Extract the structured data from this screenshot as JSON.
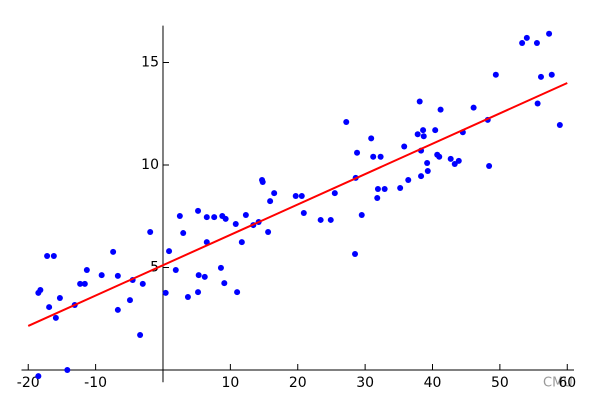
{
  "chart_data": {
    "type": "scatter",
    "xlim": [
      -21,
      61
    ],
    "ylim": [
      -0.6,
      16.8
    ],
    "xticks": [
      -20,
      -10,
      10,
      20,
      30,
      40,
      50,
      60
    ],
    "yticks": [
      5,
      10,
      15
    ],
    "series": [
      {
        "color": "#0000ff",
        "x": [
          -18.5,
          -18.2,
          -17.2,
          -16.2,
          -16.9,
          -15.9,
          -15.3,
          -18.5,
          -14.2,
          -13.1,
          -12.3,
          -11.6,
          -11.3,
          -9.1,
          -7.4,
          -6.7,
          -6.7,
          -4.9,
          -4.5,
          -3.4,
          -3.0,
          -1.9,
          0.4,
          0.9,
          1.9,
          2.5,
          3.0,
          3.7,
          5.2,
          5.3,
          5.2,
          6.2,
          6.5,
          6.5,
          7.6,
          8.8,
          8.6,
          9.3,
          9.1,
          10.8,
          11.0,
          11.7,
          12.3,
          13.4,
          14.2,
          14.7,
          14.8,
          15.6,
          15.9,
          16.5,
          19.7,
          20.6,
          20.9,
          23.4,
          24.9,
          25.5,
          27.2,
          28.5,
          28.6,
          28.8,
          29.5,
          30.9,
          31.2,
          31.8,
          31.9,
          32.3,
          32.9,
          35.2,
          35.8,
          36.4,
          37.8,
          38.1,
          38.3,
          38.3,
          38.6,
          38.7,
          39.2,
          39.3,
          40.4,
          40.7,
          41.0,
          41.2,
          42.7,
          43.3,
          43.9,
          44.5,
          46.1,
          48.2,
          48.4,
          49.4,
          53.3,
          54.0,
          55.5,
          55.6,
          56.1,
          57.3,
          57.7,
          58.9
        ],
        "values": [
          3.76,
          3.9,
          5.56,
          5.56,
          3.07,
          2.54,
          3.51,
          -0.3,
          0,
          3.17,
          4.2,
          4.2,
          4.88,
          4.63,
          5.76,
          4.59,
          2.93,
          3.41,
          4.39,
          1.71,
          4.2,
          6.73,
          3.76,
          5.8,
          4.88,
          7.51,
          6.68,
          3.56,
          7.76,
          4.63,
          3.8,
          4.54,
          7.46,
          6.24,
          7.46,
          7.51,
          4.98,
          7.37,
          4.24,
          7.12,
          3.8,
          6.24,
          7.56,
          7.07,
          7.22,
          9.27,
          9.17,
          6.73,
          8.24,
          8.63,
          8.49,
          8.49,
          7.66,
          7.32,
          7.32,
          8.63,
          12.1,
          5.66,
          9.37,
          10.6,
          7.56,
          11.3,
          10.4,
          8.39,
          8.83,
          10.4,
          8.83,
          8.88,
          10.9,
          9.27,
          11.5,
          13.1,
          9.46,
          10.7,
          11.7,
          11.4,
          10.1,
          9.71,
          11.7,
          10.5,
          10.4,
          12.7,
          10.3,
          10.05,
          10.2,
          11.6,
          12.8,
          12.2,
          9.95,
          14.4,
          15.95,
          16.2,
          15.95,
          13.0,
          14.3,
          16.4,
          14.4,
          11.95
        ]
      }
    ],
    "fit_line": {
      "color": "#ff0000",
      "x": [
        -20,
        60
      ],
      "values": [
        2.15,
        14.0
      ]
    },
    "watermark": "CMU"
  }
}
